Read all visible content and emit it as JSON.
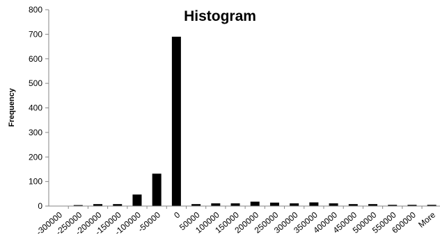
{
  "chart_data": {
    "type": "bar",
    "title": "Histogram",
    "xlabel": "",
    "ylabel": "Frequency",
    "ylim": [
      0,
      800
    ],
    "yticks": [
      "0",
      "100",
      "200",
      "300",
      "400",
      "500",
      "600",
      "700",
      "800"
    ],
    "grid": false,
    "legend": "none",
    "bar_color": "#000000",
    "categories": [
      "-300000",
      "-250000",
      "-200000",
      "-150000",
      "-100000",
      "-50000",
      "0",
      "50000",
      "100000",
      "150000",
      "200000",
      "250000",
      "300000",
      "350000",
      "400000",
      "450000",
      "500000",
      "550000",
      "600000",
      "More"
    ],
    "values": [
      0,
      4,
      8,
      8,
      47,
      132,
      690,
      8,
      11,
      11,
      18,
      14,
      11,
      15,
      11,
      8,
      8,
      5,
      5,
      5
    ]
  }
}
